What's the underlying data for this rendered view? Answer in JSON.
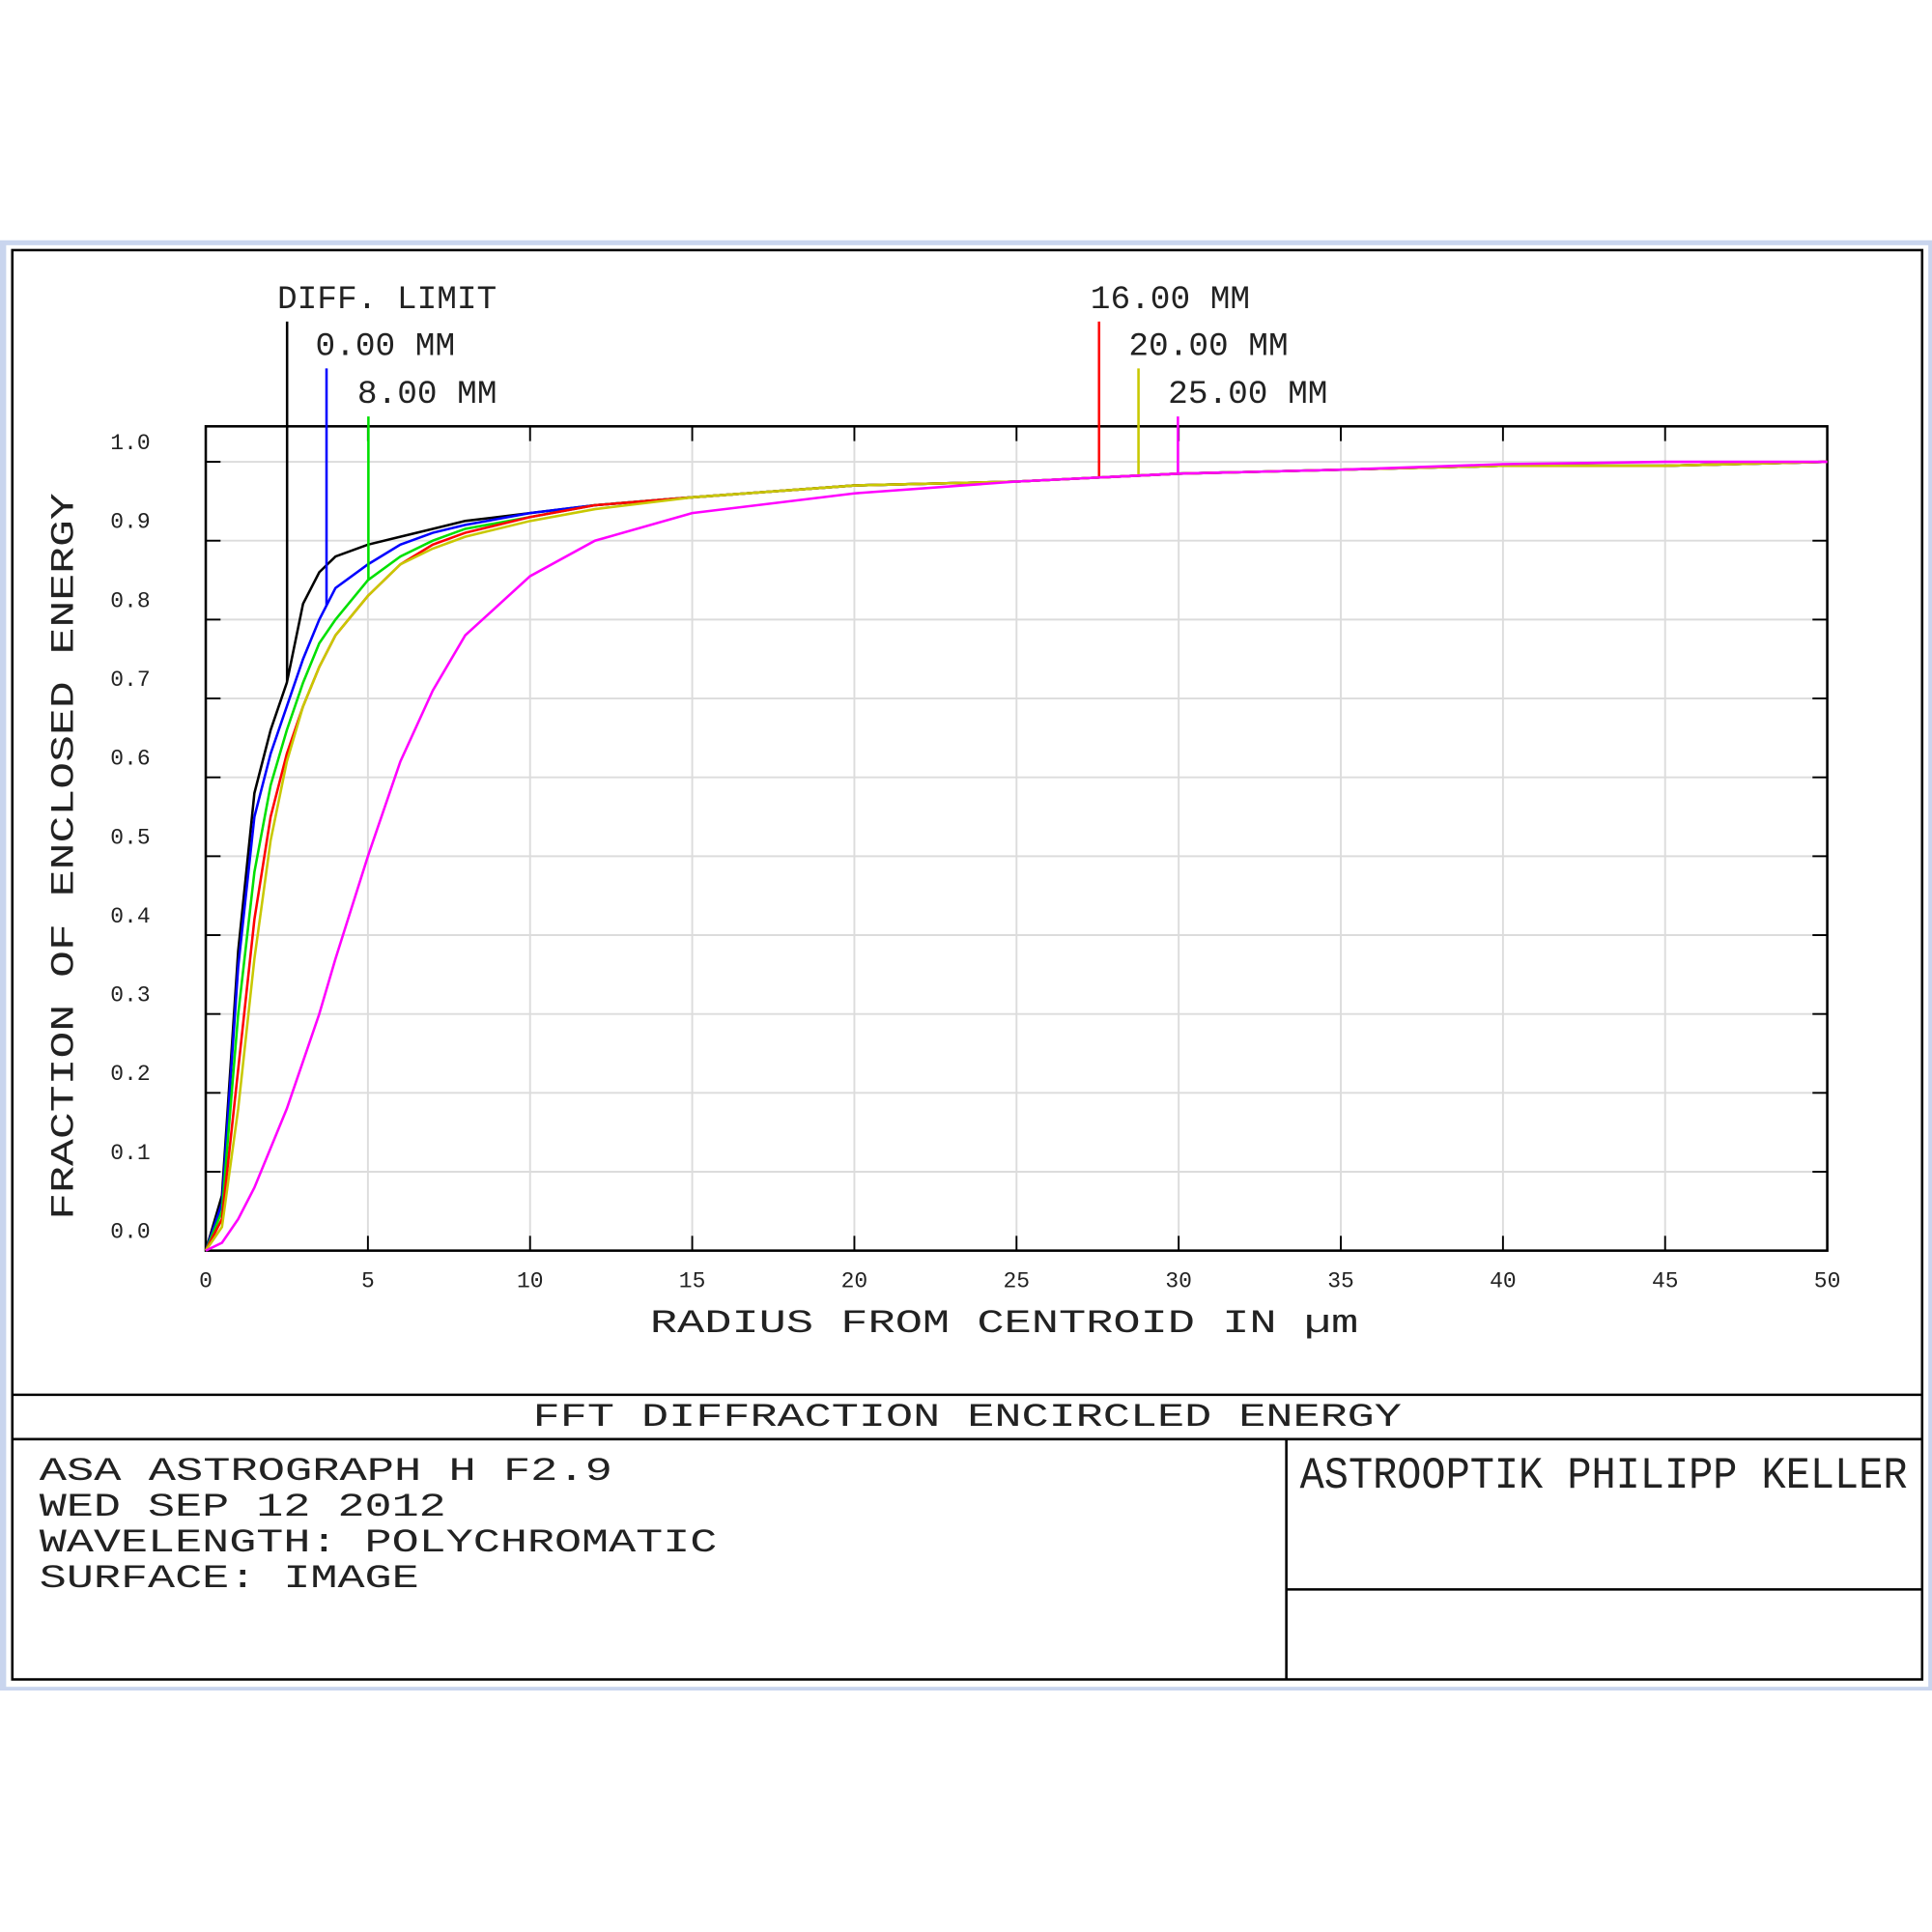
{
  "chart_data": {
    "type": "line",
    "title": "FFT DIFFRACTION ENCIRCLED ENERGY",
    "x_label": "RADIUS FROM CENTROID IN µm",
    "y_label": "FRACTION OF ENCLOSED ENERGY",
    "info": [
      "ASA ASTROGRAPH H F2.9",
      "WED SEP 12 2012",
      "WAVELENGTH: POLYCHROMATIC",
      "SURFACE: IMAGE"
    ],
    "company": "ASTROOPTIK PHILIPP KELLER",
    "x": [
      0,
      0.5,
      1,
      1.5,
      2,
      2.5,
      3,
      3.5,
      4,
      5,
      6,
      7,
      8,
      10,
      12,
      15,
      20,
      25,
      30,
      35,
      40,
      45,
      50
    ],
    "series": [
      {
        "name": "DIFF. LIMIT",
        "color": "#000000",
        "values": [
          0,
          0.07,
          0.38,
          0.58,
          0.66,
          0.72,
          0.82,
          0.86,
          0.88,
          0.895,
          0.905,
          0.915,
          0.925,
          0.935,
          0.945,
          0.955,
          0.97,
          0.975,
          0.985,
          0.99,
          0.995,
          0.995,
          1.0
        ]
      },
      {
        "name": "0.00 MM",
        "color": "#0000ff",
        "values": [
          0,
          0.06,
          0.36,
          0.55,
          0.63,
          0.69,
          0.75,
          0.8,
          0.84,
          0.87,
          0.895,
          0.91,
          0.92,
          0.935,
          0.945,
          0.955,
          0.97,
          0.975,
          0.985,
          0.99,
          0.995,
          0.995,
          1.0
        ]
      },
      {
        "name": "8.00 MM",
        "color": "#00e000",
        "values": [
          0,
          0.05,
          0.3,
          0.48,
          0.59,
          0.66,
          0.72,
          0.77,
          0.8,
          0.85,
          0.88,
          0.9,
          0.915,
          0.93,
          0.945,
          0.955,
          0.97,
          0.975,
          0.985,
          0.99,
          0.995,
          0.995,
          1.0
        ]
      },
      {
        "name": "16.00 MM",
        "color": "#ff0000",
        "values": [
          0,
          0.04,
          0.23,
          0.42,
          0.55,
          0.63,
          0.69,
          0.74,
          0.78,
          0.83,
          0.87,
          0.895,
          0.91,
          0.93,
          0.945,
          0.955,
          0.97,
          0.975,
          0.985,
          0.99,
          0.995,
          0.995,
          1.0
        ]
      },
      {
        "name": "20.00 MM",
        "color": "#c8c800",
        "values": [
          0,
          0.03,
          0.18,
          0.37,
          0.52,
          0.62,
          0.69,
          0.74,
          0.78,
          0.83,
          0.87,
          0.89,
          0.905,
          0.925,
          0.94,
          0.955,
          0.97,
          0.975,
          0.985,
          0.99,
          0.995,
          0.995,
          1.0
        ]
      },
      {
        "name": "25.00 MM",
        "color": "#ff00ff",
        "values": [
          0,
          0.01,
          0.04,
          0.08,
          0.13,
          0.18,
          0.24,
          0.3,
          0.37,
          0.5,
          0.62,
          0.71,
          0.78,
          0.855,
          0.9,
          0.935,
          0.96,
          0.975,
          0.985,
          0.99,
          0.997,
          1.0,
          1.0
        ]
      }
    ],
    "xlim": [
      0,
      50
    ],
    "xticks": [
      0,
      5,
      10,
      15,
      20,
      25,
      30,
      35,
      40,
      45,
      50
    ],
    "ylim": [
      0,
      1.045
    ],
    "yticks": [
      {
        "value": 0,
        "label": "0.0"
      },
      0.1,
      0.2,
      0.3,
      0.4,
      0.5,
      0.6,
      0.7,
      0.8,
      0.9,
      {
        "value": 1,
        "label": "1.0"
      }
    ],
    "grid": true
  }
}
